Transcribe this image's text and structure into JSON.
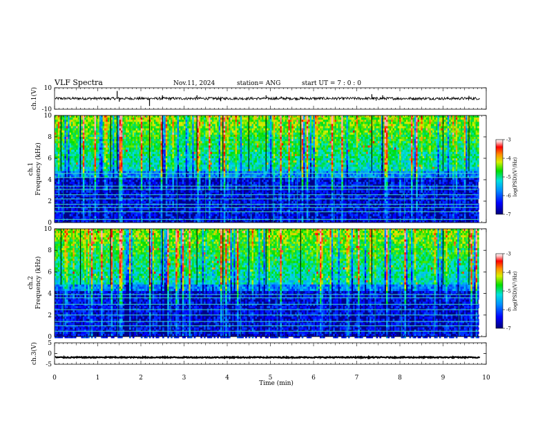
{
  "header": {
    "title": "VLF Spectra",
    "date": "Nov.11, 2024",
    "station": "station= ANG",
    "start": "start  UT =   7 : 0  : 0"
  },
  "chart_data": [
    {
      "type": "line",
      "name": "ch1-waveform",
      "ylabel": "ch.1(V)",
      "ylim": [
        -10,
        10
      ],
      "yticks": [
        "10",
        "-10"
      ],
      "xlim": [
        0,
        10
      ],
      "baseline": 0,
      "noise_amplitude": 1.2,
      "spikes": [
        {
          "t": 1.45,
          "v": 7
        },
        {
          "t": 1.5,
          "v": -3
        },
        {
          "t": 2.2,
          "v": -7
        },
        {
          "t": 2.5,
          "v": 3
        },
        {
          "t": 3.3,
          "v": 3
        },
        {
          "t": 3.85,
          "v": -2.5
        },
        {
          "t": 4.9,
          "v": 3
        },
        {
          "t": 5.25,
          "v": 2
        },
        {
          "t": 7.35,
          "v": 4
        },
        {
          "t": 7.45,
          "v": -2
        },
        {
          "t": 7.6,
          "v": 3
        },
        {
          "t": 9.6,
          "v": 2.5
        }
      ]
    },
    {
      "type": "heatmap",
      "name": "ch1-spectrogram",
      "ylabel": "ch.1 Frequency  (kHz)",
      "ylim": [
        0,
        10
      ],
      "yticks": [
        "0",
        "2",
        "4",
        "6",
        "8",
        "10"
      ],
      "xlim": [
        0,
        10
      ],
      "data_end_min": 9.82,
      "colorbar": {
        "label": "log(PSD)(V²/Hz)",
        "range": [
          -7,
          -3
        ],
        "ticks": [
          "-3",
          "-4",
          "-5",
          "-6",
          "-7"
        ]
      },
      "horizontal_lines_khz": [
        0.3,
        1.0,
        1.4,
        1.7,
        2.2,
        2.6,
        3.1,
        3.4,
        4.2,
        4.6
      ],
      "sferic_times_min": [
        0.15,
        0.6,
        1.3,
        1.45,
        2.2,
        2.5,
        3.3,
        3.9,
        4.5,
        4.9,
        5.7,
        7.35,
        7.6,
        9.0,
        9.6
      ]
    },
    {
      "type": "heatmap",
      "name": "ch2-spectrogram",
      "ylabel": "ch.2 Frequency  (kHz)",
      "ylim": [
        0,
        10
      ],
      "yticks": [
        "0",
        "2",
        "4",
        "6",
        "8",
        "10"
      ],
      "xlim": [
        0,
        10
      ],
      "data_end_min": 9.82,
      "colorbar": {
        "label": "log(PSD)(V²/Hz)",
        "range": [
          -7,
          -3
        ],
        "ticks": [
          "-3",
          "-4",
          "-5",
          "-6",
          "-7"
        ]
      },
      "horizontal_lines_khz": [
        0.5,
        1.0,
        1.4,
        2.0,
        2.5,
        3.0,
        3.6,
        3.9
      ],
      "sferic_times_min": [
        0.15,
        0.6,
        1.3,
        2.2,
        2.5,
        3.3,
        3.9,
        4.5,
        4.9,
        5.7,
        7.35,
        9.0,
        9.6
      ]
    },
    {
      "type": "line",
      "name": "ch3-waveform",
      "ylabel": "ch.3(V)",
      "ylim": [
        -5,
        5
      ],
      "yticks": [
        "5",
        "0",
        "-5"
      ],
      "xlim": [
        0,
        10
      ],
      "baseline": -1.8,
      "noise_amplitude": 0.25,
      "spikes": []
    }
  ],
  "xaxis": {
    "label": "Time  (min)",
    "ticks": [
      "0",
      "1",
      "2",
      "3",
      "4",
      "5",
      "6",
      "7",
      "8",
      "9",
      "10"
    ]
  }
}
